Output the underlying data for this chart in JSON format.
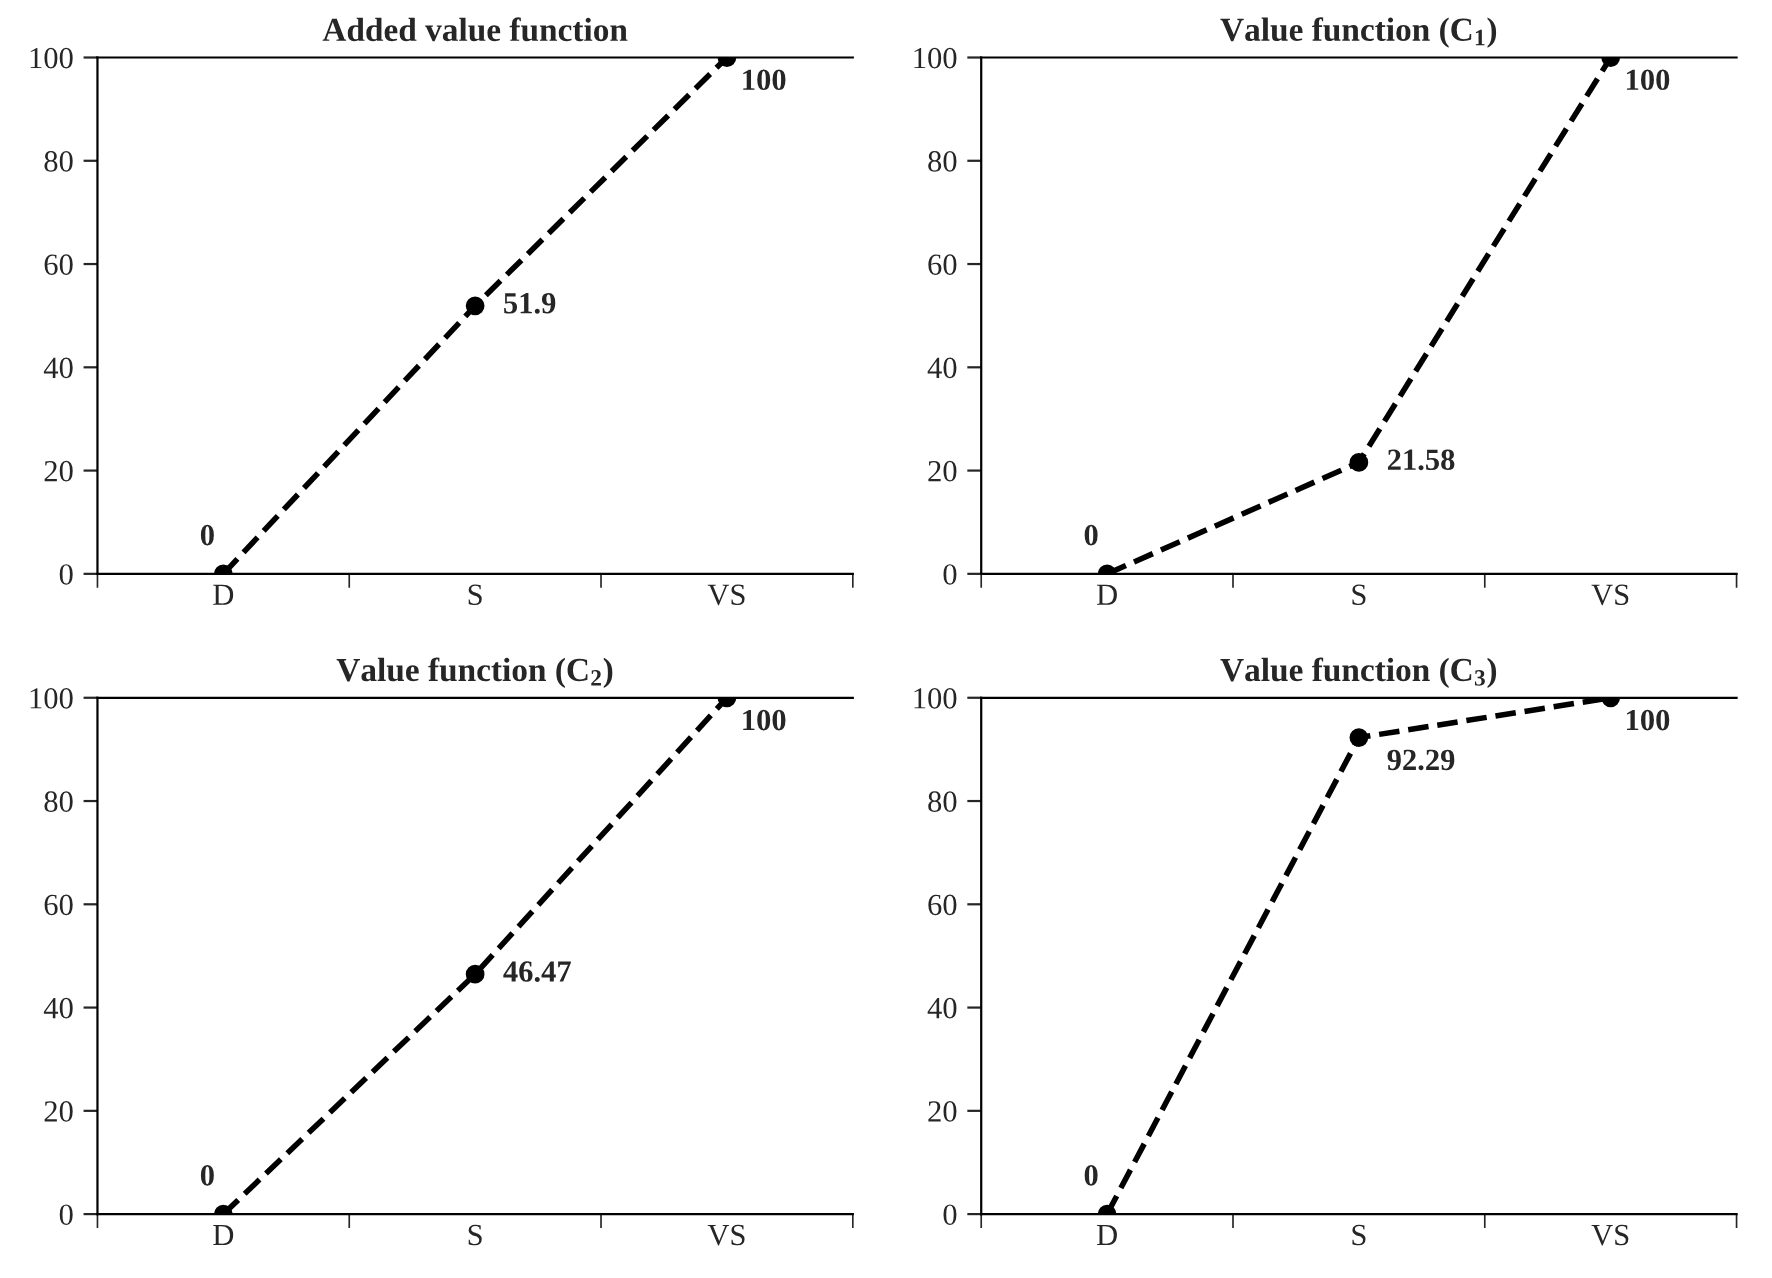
{
  "chart_data": [
    {
      "type": "line",
      "title": "Added value function",
      "categories": [
        "D",
        "S",
        "VS"
      ],
      "series": [
        {
          "color": "#000000",
          "values": [
            0,
            51.9,
            100
          ]
        }
      ],
      "ylim": [
        0,
        100
      ],
      "yticks": [
        0,
        20,
        40,
        60,
        80,
        100
      ],
      "data_labels": true,
      "marker": "circle",
      "line_style": "dashed",
      "grid": false,
      "legend": false
    },
    {
      "type": "line",
      "title": "Value function (C$_{1}$)",
      "categories": [
        "D",
        "S",
        "VS"
      ],
      "series": [
        {
          "color": "#000000",
          "values": [
            0,
            21.58,
            100
          ]
        }
      ],
      "ylim": [
        0,
        100
      ],
      "yticks": [
        0,
        20,
        40,
        60,
        80,
        100
      ],
      "data_labels": true,
      "marker": "circle",
      "line_style": "dashed",
      "grid": false,
      "legend": false
    },
    {
      "type": "line",
      "title": "Value function (C$_{2}$)",
      "categories": [
        "D",
        "S",
        "VS"
      ],
      "series": [
        {
          "color": "#000000",
          "values": [
            0,
            46.47,
            100
          ]
        }
      ],
      "ylim": [
        0,
        100
      ],
      "yticks": [
        0,
        20,
        40,
        60,
        80,
        100
      ],
      "data_labels": true,
      "marker": "circle",
      "line_style": "dashed",
      "grid": false,
      "legend": false
    },
    {
      "type": "line",
      "title": "Value function (C$_{3}$)",
      "categories": [
        "D",
        "S",
        "VS"
      ],
      "series": [
        {
          "color": "#000000",
          "values": [
            0,
            92.29,
            100
          ]
        }
      ],
      "ylim": [
        0,
        100
      ],
      "yticks": [
        0,
        20,
        40,
        60,
        80,
        100
      ],
      "data_labels": true,
      "marker": "circle",
      "line_style": "dashed",
      "grid": false,
      "legend": false
    }
  ]
}
